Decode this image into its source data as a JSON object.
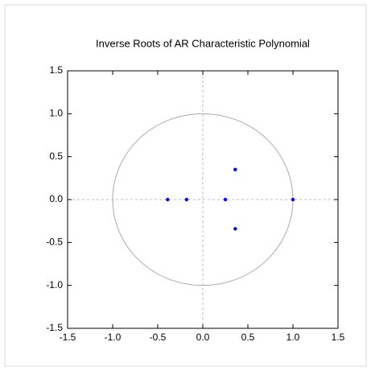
{
  "chart_data": {
    "type": "scatter",
    "title": "Inverse Roots of AR Characteristic Polynomial",
    "series": [
      {
        "color": "#0000ee",
        "x": [
          -0.39,
          -0.18,
          0.25,
          0.36,
          0.36,
          1.0
        ],
        "values": [
          0,
          0,
          0,
          0.35,
          -0.34,
          0
        ]
      }
    ],
    "xlim": [
      -1.5,
      1.5
    ],
    "ylim": [
      -1.5,
      1.5
    ],
    "xticks": [
      -1.5,
      {
        "value": -1.0,
        "label": "-1.0"
      },
      -0.5,
      {
        "value": 0,
        "label": "0.0"
      },
      0.5,
      {
        "value": 1.0,
        "label": "1.0"
      },
      1.5
    ],
    "yticks": [
      -1.5,
      {
        "value": -1.0,
        "label": "-1.0"
      },
      -0.5,
      {
        "value": 0,
        "label": "0.0"
      },
      0.5,
      {
        "value": 1.0,
        "label": "1.0"
      },
      1.5
    ],
    "unit_circle": true,
    "zero_lines": true
  }
}
